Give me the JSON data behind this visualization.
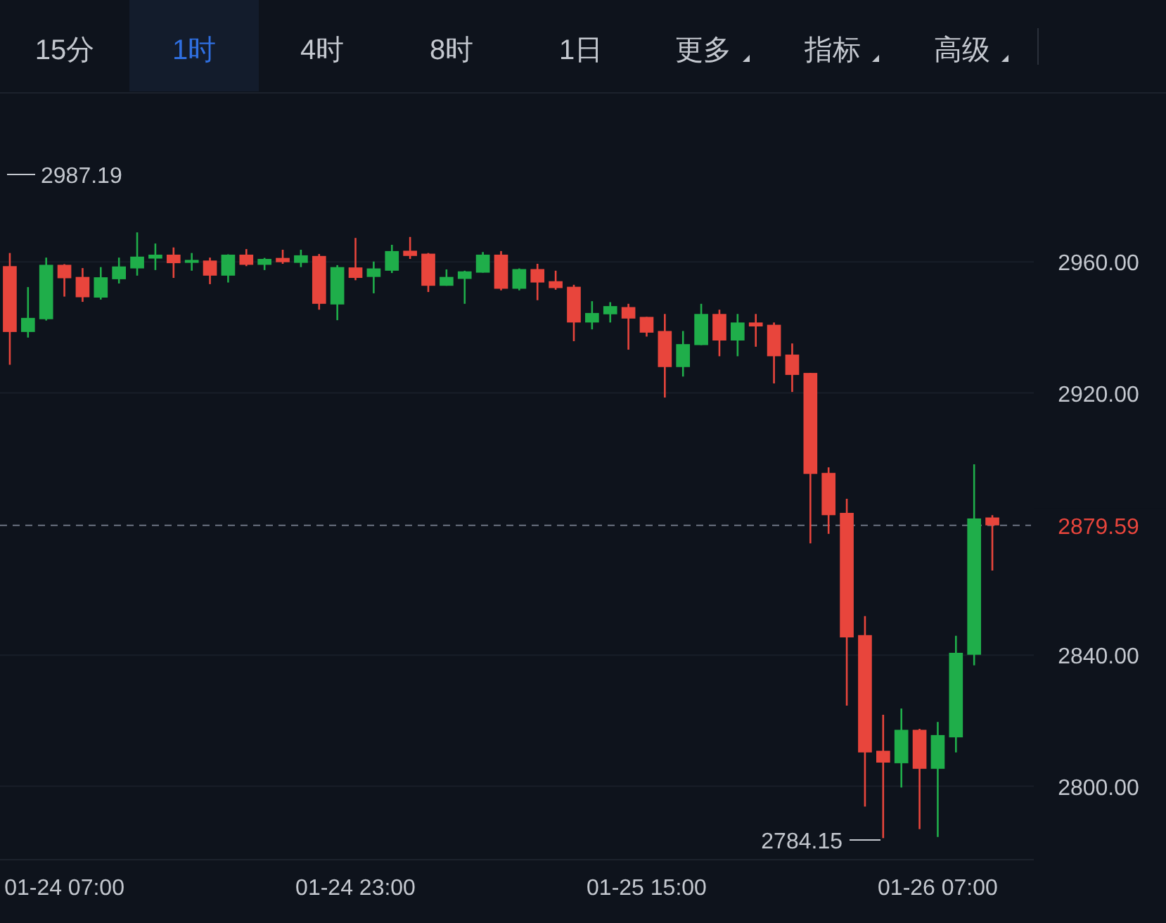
{
  "chart_data": {
    "type": "candlestick",
    "categories": [
      null,
      null,
      null,
      "01-24 07:00",
      null,
      null,
      null,
      null,
      null,
      null,
      null,
      null,
      null,
      null,
      null,
      null,
      null,
      null,
      null,
      "01-24 23:00",
      null,
      null,
      null,
      null,
      null,
      null,
      null,
      null,
      null,
      null,
      null,
      null,
      null,
      null,
      null,
      "01-25 15:00",
      null,
      null,
      null,
      null,
      null,
      null,
      null,
      null,
      null,
      null,
      null,
      null,
      null,
      null,
      null,
      "01-26 07:00",
      null,
      null,
      null
    ],
    "ohlc": [
      [
        2958.7,
        2962.7,
        2928.6,
        2938.6
      ],
      [
        2938.6,
        2952.3,
        2936.9,
        2942.9
      ],
      [
        2942.5,
        2961.3,
        2942.1,
        2959.1
      ],
      [
        2959.1,
        2959.3,
        2949.4,
        2955.0
      ],
      [
        2955.4,
        2958.1,
        2947.8,
        2949.2
      ],
      [
        2949.1,
        2958.4,
        2948.5,
        2955.3
      ],
      [
        2954.7,
        2961.3,
        2953.4,
        2958.6
      ],
      [
        2958.0,
        2969.0,
        2955.8,
        2961.6
      ],
      [
        2961.0,
        2965.6,
        2957.5,
        2962.2
      ],
      [
        2962.2,
        2964.4,
        2955.1,
        2959.6
      ],
      [
        2959.7,
        2962.7,
        2957.3,
        2960.6
      ],
      [
        2960.4,
        2961.3,
        2953.2,
        2955.8
      ],
      [
        2955.8,
        2962.3,
        2953.7,
        2962.2
      ],
      [
        2962.2,
        2963.9,
        2958.7,
        2959.1
      ],
      [
        2959.1,
        2961.2,
        2957.5,
        2960.9
      ],
      [
        2961.2,
        2963.7,
        2959.4,
        2959.9
      ],
      [
        2959.7,
        2963.7,
        2958.4,
        2962.0
      ],
      [
        2961.8,
        2962.4,
        2945.4,
        2947.2
      ],
      [
        2947.0,
        2959.0,
        2942.2,
        2958.4
      ],
      [
        2958.3,
        2967.3,
        2954.4,
        2955.1
      ],
      [
        2955.4,
        2960.1,
        2950.4,
        2958.0
      ],
      [
        2957.3,
        2965.2,
        2956.6,
        2963.3
      ],
      [
        2963.4,
        2967.6,
        2960.9,
        2961.8
      ],
      [
        2962.5,
        2962.7,
        2950.8,
        2952.7
      ],
      [
        2952.7,
        2957.7,
        2952.7,
        2955.4
      ],
      [
        2954.8,
        2957.3,
        2947.2,
        2957.1
      ],
      [
        2956.7,
        2963.0,
        2956.7,
        2962.2
      ],
      [
        2962.2,
        2963.3,
        2951.3,
        2951.8
      ],
      [
        2951.8,
        2958.0,
        2951.3,
        2957.8
      ],
      [
        2957.8,
        2959.4,
        2948.3,
        2953.7
      ],
      [
        2954.1,
        2957.3,
        2951.5,
        2952.0
      ],
      [
        2952.4,
        2953.0,
        2935.8,
        2941.5
      ],
      [
        2941.5,
        2948.0,
        2939.4,
        2944.4
      ],
      [
        2944.0,
        2947.7,
        2941.5,
        2946.5
      ],
      [
        2946.2,
        2947.2,
        2933.2,
        2942.7
      ],
      [
        2943.2,
        2943.2,
        2937.2,
        2938.4
      ],
      [
        2938.9,
        2944.1,
        2918.6,
        2927.9
      ],
      [
        2927.9,
        2938.9,
        2925.0,
        2934.9
      ],
      [
        2934.6,
        2947.2,
        2934.6,
        2944.1
      ],
      [
        2944.1,
        2945.4,
        2931.2,
        2936.0
      ],
      [
        2936.0,
        2944.1,
        2931.2,
        2941.5
      ],
      [
        2941.5,
        2944.1,
        2934.1,
        2940.3
      ],
      [
        2940.8,
        2941.5,
        2922.9,
        2931.2
      ],
      [
        2931.7,
        2935.1,
        2920.3,
        2925.5
      ],
      [
        2926.1,
        2926.1,
        2874.1,
        2895.3
      ],
      [
        2895.6,
        2897.3,
        2877.0,
        2882.7
      ],
      [
        2883.4,
        2887.7,
        2824.6,
        2845.4
      ],
      [
        2846.1,
        2851.9,
        2793.8,
        2810.3
      ],
      [
        2810.8,
        2821.8,
        2784.15,
        2807.2
      ],
      [
        2807.0,
        2823.7,
        2799.6,
        2817.2
      ],
      [
        2817.2,
        2817.5,
        2786.9,
        2805.3
      ],
      [
        2805.3,
        2819.6,
        2784.5,
        2815.6
      ],
      [
        2814.9,
        2845.9,
        2810.3,
        2840.7
      ],
      [
        2840.1,
        2898.2,
        2836.9,
        2881.7
      ],
      [
        2882.0,
        2882.7,
        2865.8,
        2879.59
      ]
    ],
    "colors": [
      "#e8453c",
      "#1fae4a",
      "#1fae4a",
      "#e8453c",
      "#e8453c",
      "#1fae4a",
      "#1fae4a",
      "#1fae4a",
      "#1fae4a",
      "#e8453c",
      "#1fae4a",
      "#e8453c",
      "#1fae4a",
      "#e8453c",
      "#1fae4a",
      "#e8453c",
      "#1fae4a",
      "#e8453c",
      "#1fae4a",
      "#e8453c",
      "#1fae4a",
      "#1fae4a",
      "#e8453c",
      "#e8453c",
      "#1fae4a",
      "#1fae4a",
      "#1fae4a",
      "#e8453c",
      "#1fae4a",
      "#e8453c",
      "#e8453c",
      "#e8453c",
      "#1fae4a",
      "#1fae4a",
      "#e8453c",
      "#e8453c",
      "#e8453c",
      "#1fae4a",
      "#1fae4a",
      "#e8453c",
      "#1fae4a",
      "#e8453c",
      "#e8453c",
      "#e8453c",
      "#e8453c",
      "#e8453c",
      "#e8453c",
      "#e8453c",
      "#e8453c",
      "#1fae4a",
      "#e8453c",
      "#1fae4a",
      "#1fae4a",
      "#1fae4a",
      "#e8453c"
    ],
    "ylim": [
      2778,
      3012
    ],
    "yticks": [
      {
        "value": 2800,
        "label": "2800.00"
      },
      {
        "value": 2840,
        "label": "2840.00"
      },
      {
        "value": 2920,
        "label": "2920.00"
      },
      {
        "value": 2960,
        "label": "2960.00"
      }
    ],
    "grid": "y",
    "ref_lines": [
      {
        "axis": "y",
        "value": 2879.59,
        "label": "2879.59",
        "color": "#6b7280",
        "line_style": "dashed"
      }
    ],
    "annotations": [
      "15分",
      "1时",
      "4时",
      "8时",
      "1日",
      "更多",
      "指标",
      "高级",
      "2987.19",
      "2784.15"
    ]
  }
}
